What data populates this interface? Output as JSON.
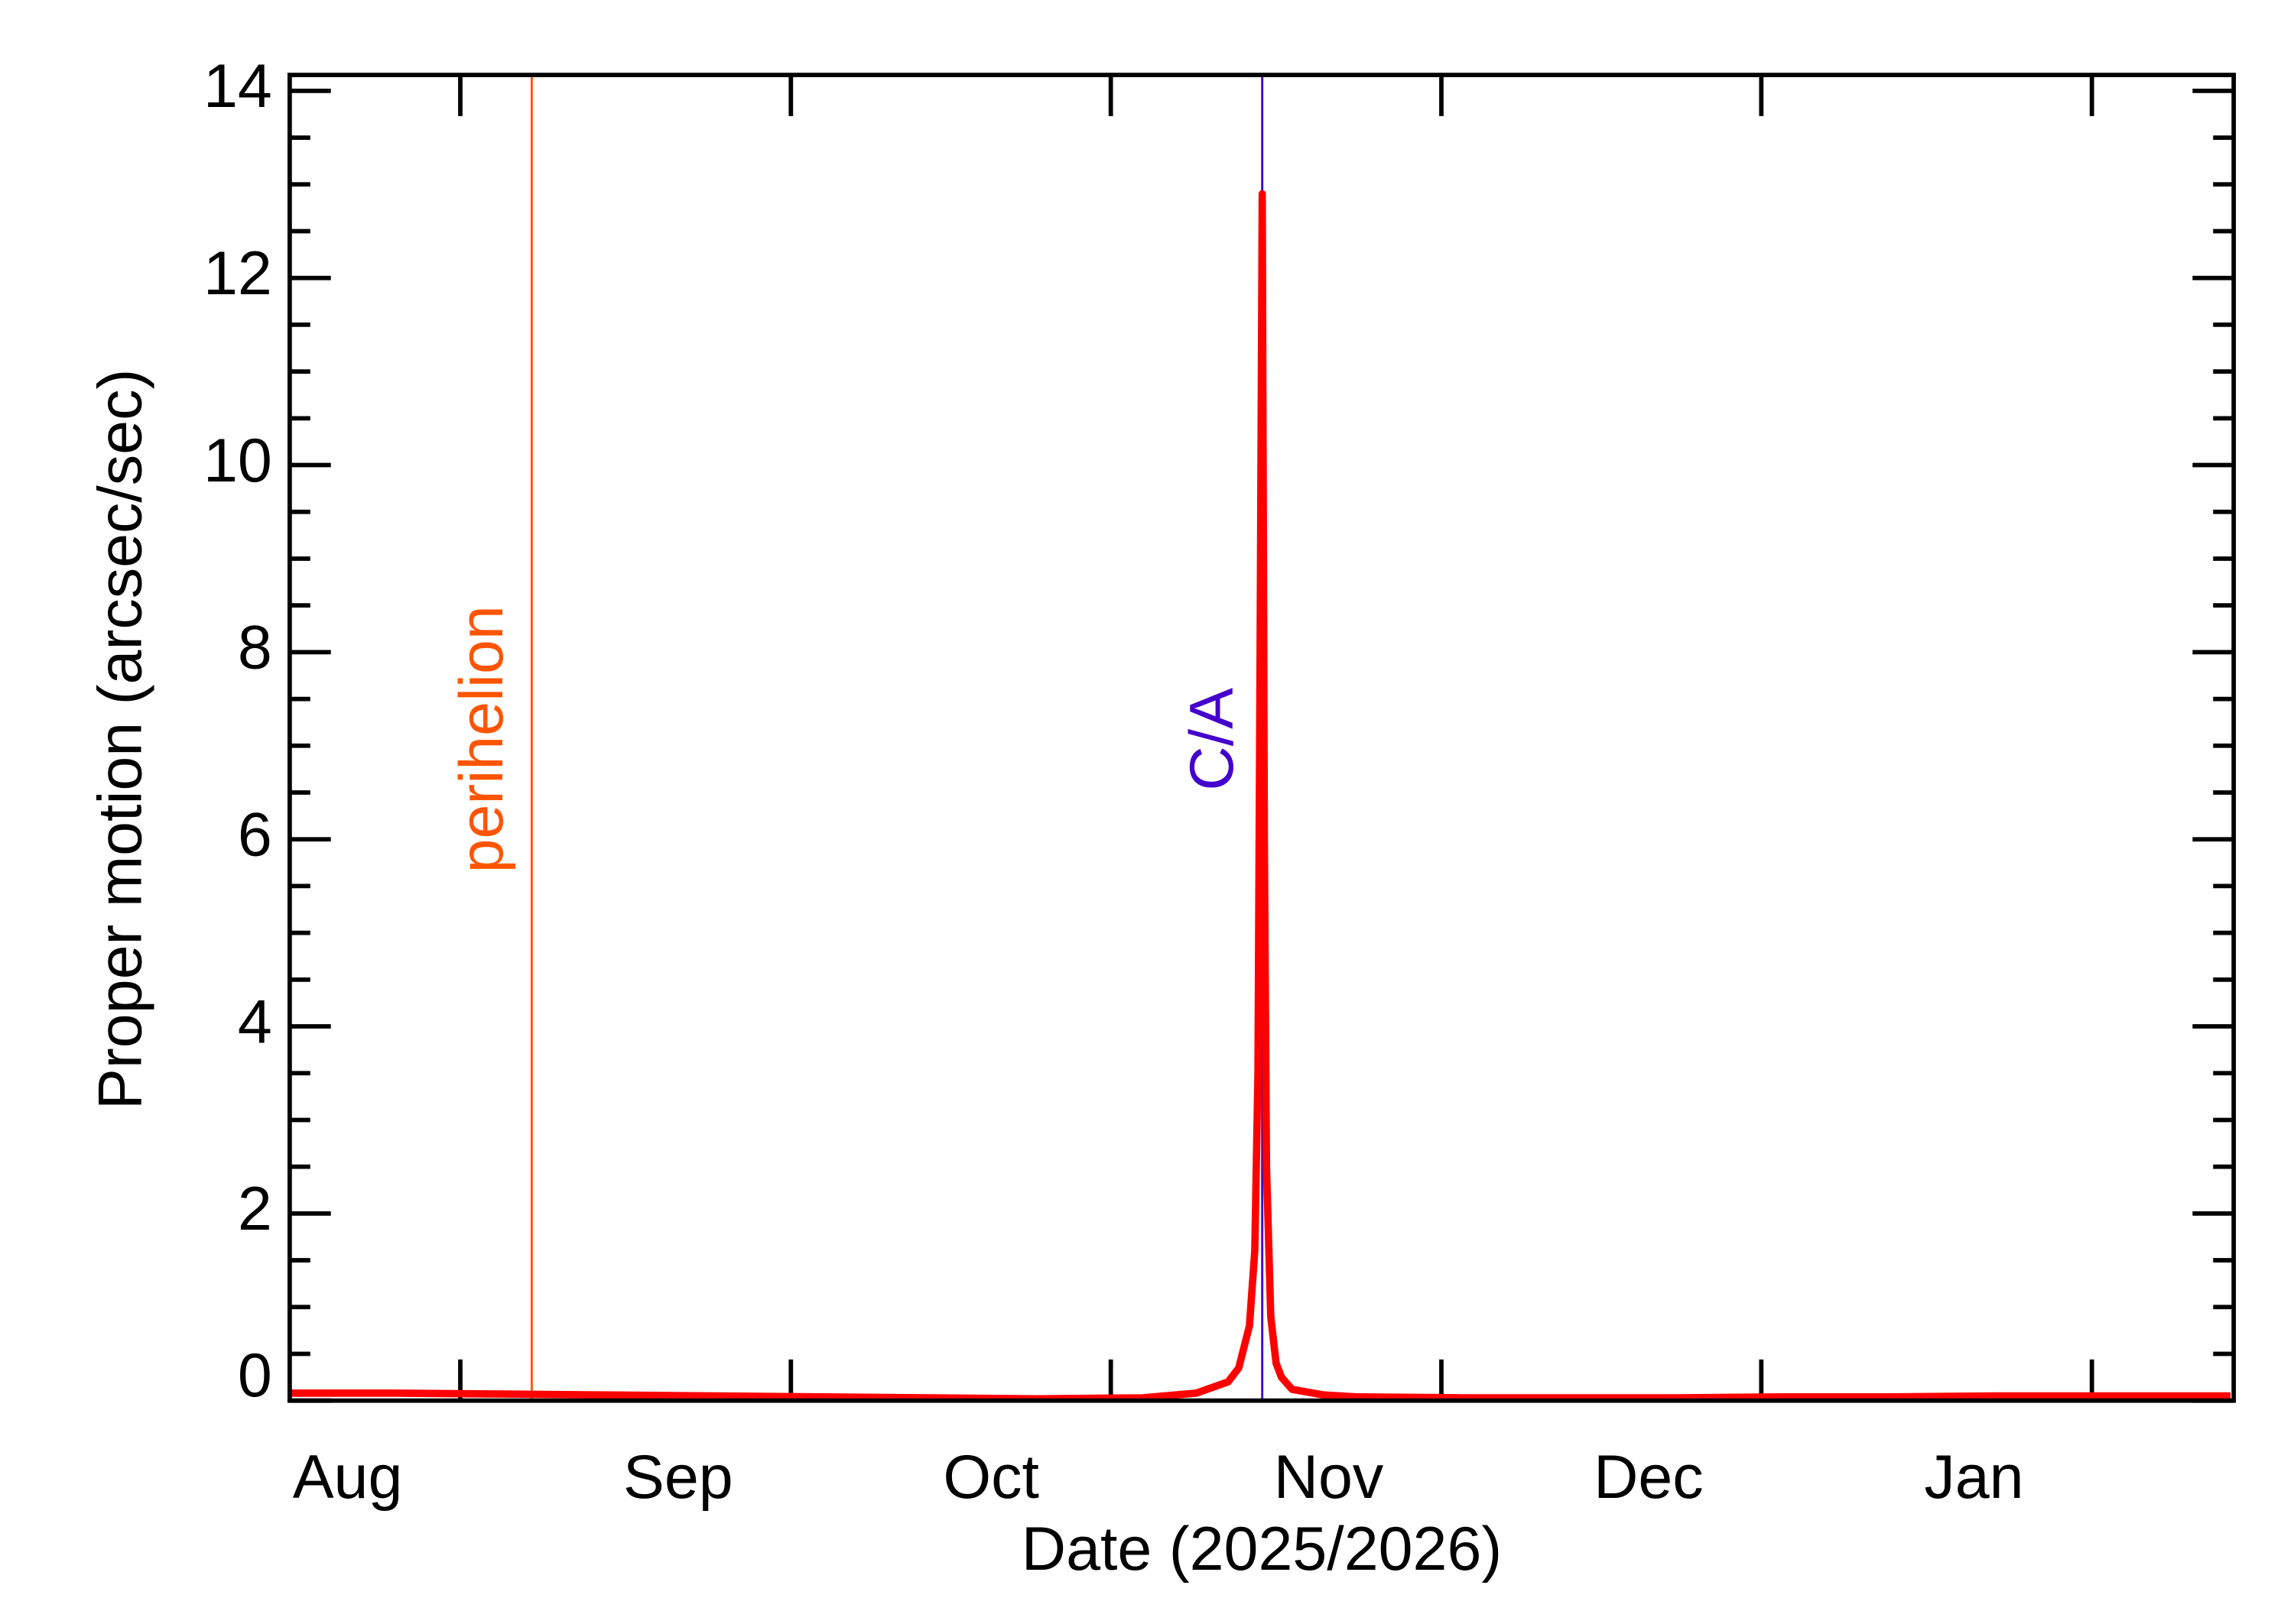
{
  "chart_data": {
    "type": "line",
    "xlabel": "Date (2025/2026)",
    "ylabel": "Proper motion (arcsec/sec)",
    "x": [
      0,
      10,
      20,
      30,
      40,
      50,
      60,
      70,
      80,
      85,
      88,
      89,
      90,
      90.5,
      90.8,
      91,
      91.2,
      91.4,
      91.6,
      92,
      92.5,
      93,
      94,
      97,
      100,
      110,
      120,
      130,
      140,
      150,
      160,
      170,
      182
    ],
    "series": [
      {
        "color": "#ff0000",
        "values": [
          0.08,
          0.08,
          0.07,
          0.06,
          0.05,
          0.04,
          0.03,
          0.02,
          0.03,
          0.08,
          0.2,
          0.35,
          0.8,
          1.6,
          3.5,
          8,
          12.9,
          6,
          2.5,
          0.9,
          0.4,
          0.25,
          0.12,
          0.06,
          0.04,
          0.03,
          0.03,
          0.03,
          0.04,
          0.04,
          0.05,
          0.05,
          0.05
        ]
      }
    ],
    "xlim": [
      0,
      182.3
    ],
    "xticks": [
      {
        "value": 0,
        "label": "Aug"
      },
      {
        "value": 31,
        "label": "Sep"
      },
      {
        "value": 61,
        "label": "Oct"
      },
      {
        "value": 92,
        "label": "Nov"
      },
      {
        "value": 122,
        "label": "Dec"
      },
      {
        "value": 153,
        "label": "Jan"
      }
    ],
    "xticks_minor": [
      16,
      47,
      77,
      108,
      138,
      169
    ],
    "ylim": [
      0,
      14.17
    ],
    "yticks": [
      0,
      2,
      4,
      6,
      8,
      10,
      12,
      14
    ],
    "yticks_minor": [
      0.5,
      1,
      1.5,
      2.5,
      3,
      3.5,
      4.5,
      5,
      5.5,
      6.5,
      7,
      7.5,
      8.5,
      9,
      9.5,
      10.5,
      11,
      11.5,
      12.5,
      13,
      13.5
    ],
    "annotations": [
      {
        "text": "perihelion",
        "x": 22.7,
        "color": "#ff5500"
      },
      {
        "text": "C/A",
        "x": 91.2,
        "color": "#4400cc"
      }
    ]
  }
}
